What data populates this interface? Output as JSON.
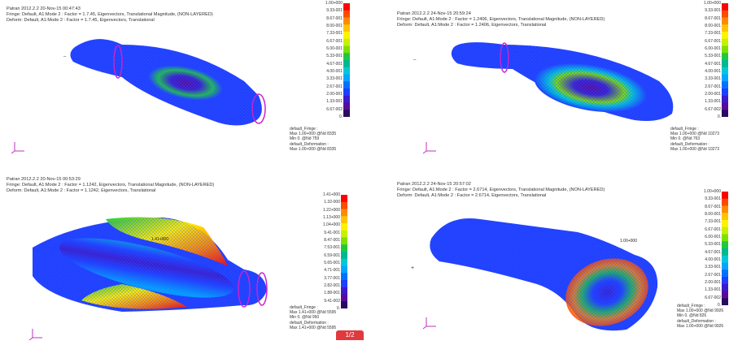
{
  "panels": [
    {
      "id": "top-left",
      "header": [
        "Patran 2012.2.2 20-Nov-15 00:47:43",
        "Fringe: Default, A1:Mode 2 : Factor = 1.7.45, Eigenvectors, Translational Magnitude, (NON-LAYERED)",
        "Deform: Default, A1:Mode 2 : Factor = 1.7.45, Eigenvectors, Translational"
      ],
      "legend": [
        "1.00+000",
        "9.33-001",
        "8.67-001",
        "8.00-001",
        "7.33-001",
        "6.67-001",
        "6.00-001",
        "5.33-001",
        "4.67-001",
        "4.00-001",
        "3.33-001",
        "2.67-001",
        "2.00-001",
        "1.33-001",
        "6.67-002",
        "0."
      ],
      "footer": [
        "default_Fringe :",
        "Max 1.00+000 @Nd 8335",
        "Min 0. @Nd 759",
        "default_Deformation :",
        "Max 1.00+000 @Nd 8335"
      ],
      "annotation": ""
    },
    {
      "id": "top-right",
      "header": [
        "Patran 2012.2.2 24-Nov-15 20:59:24",
        "Fringe: Default, A1:Mode 2 : Factor = 1.2406, Eigenvectors, Translational Magnitude, (NON-LAYERED)",
        "Deform: Default, A1:Mode 2 : Factor = 1.2406, Eigenvectors, Translational"
      ],
      "legend": [
        "1.00+000",
        "9.33-001",
        "8.67-001",
        "8.00-001",
        "7.33-001",
        "6.67-001",
        "6.00-001",
        "5.33-001",
        "4.67-001",
        "4.00-001",
        "3.33-001",
        "2.67-001",
        "2.00-001",
        "1.33-001",
        "6.67-002",
        "0."
      ],
      "footer": [
        "default_Fringe :",
        "Max 1.00+000 @Nd 10273",
        "Min 0. @Nd 763",
        "default_Deformation :",
        "Max 1.00+000 @Nd 10273"
      ],
      "annotation": ""
    },
    {
      "id": "bottom-left",
      "header": [
        "Patran 2012.2.2 20-Nov-15 00:53:29",
        "Fringe: Default, A1:Mode 2 : Factor = 1.1242, Eigenvectors, Translational Magnitude, (NON-LAYERED)",
        "Deform: Default, A1:Mode 2 : Factor = 1.1242, Eigenvectors, Translational"
      ],
      "legend": [
        "1.41+000",
        "1.32-000",
        "1.22+000",
        "1.13+000",
        "1.04+000",
        "9.41-001",
        "8.47-001",
        "7.53-001",
        "6.59-001",
        "5.65-001",
        "4.71-001",
        "3.77-001",
        "2.82-001",
        "1.88-001",
        "9.41-002",
        "0."
      ],
      "footer": [
        "default_Fringe :",
        "Max 1.41+000 @Nd 5595",
        "Min 0. @Nd 950",
        "default_Deformation :",
        "Max 1.41+000 @Nd 5595"
      ],
      "annotation": "1.41+000"
    },
    {
      "id": "bottom-right",
      "header": [
        "Patran 2012.2.2 24-Nov-15 20:57:02",
        "Fringe: Default, A1:Mode 2 : Factor = 2.6714, Eigenvectors, Translational Magnitude, (NON-LAYERED)",
        "Deform: Default, A1:Mode 2 : Factor = 2.6714, Eigenvectors, Translational"
      ],
      "legend": [
        "1.00+000",
        "9.33-001",
        "8.67-001",
        "8.00-001",
        "7.33-001",
        "6.67-001",
        "6.00-001",
        "5.33-001",
        "4.67-001",
        "4.00-001",
        "3.33-001",
        "2.67-001",
        "2.00-001",
        "1.33-001",
        "6.67-002",
        "0."
      ],
      "footer": [
        "default_Fringe :",
        "Max 1.00+000 @Nd 9926",
        "Min 0. @Nd 826",
        "default_Deformation :",
        "Max 1.00+000 @Nd 9926"
      ],
      "annotation": "1.00+000"
    }
  ],
  "badge_label": "1/2",
  "colors": {
    "scale": [
      "#ff0000",
      "#ff4a00",
      "#ff8c00",
      "#ffc400",
      "#fff200",
      "#c8f000",
      "#7fe000",
      "#20c840",
      "#00b890",
      "#00c8d8",
      "#00a6ff",
      "#0070ff",
      "#1f3fff",
      "#3a1ccc",
      "#5a0a9a",
      "#2a0a60"
    ],
    "mesh": "#2244ee",
    "constraint": "#cc22cc"
  }
}
